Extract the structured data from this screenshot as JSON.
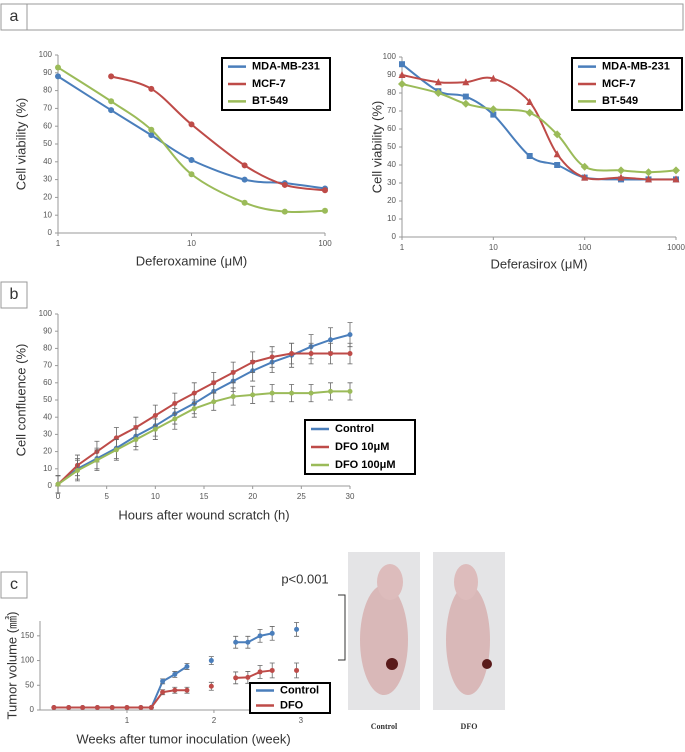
{
  "panel_labels": [
    "a",
    "b",
    "c"
  ],
  "photos": [
    {
      "caption": "Control"
    },
    {
      "caption": "DFO"
    }
  ],
  "chart_data": [
    {
      "type": "line",
      "ylabel": "Cell viability (%)",
      "xlabel": "Deferoxamine  (μM)",
      "xscale": "log",
      "xlim": [
        1,
        100
      ],
      "xticks": [
        1,
        10,
        100
      ],
      "ylim": [
        0,
        100
      ],
      "yticks": [
        0,
        10,
        20,
        30,
        40,
        50,
        60,
        70,
        80,
        90,
        100
      ],
      "legend": "upper right",
      "smooth": true,
      "x": [
        1,
        2.5,
        5,
        10,
        25,
        50,
        100
      ],
      "series": [
        {
          "name": "MDA-MB-231",
          "color": "#4a7ebb",
          "marker": "circle",
          "values": [
            88,
            69,
            55,
            41,
            30,
            28,
            25
          ]
        },
        {
          "name": "MCF-7",
          "color": "#be4b48",
          "marker": "circle",
          "values": [
            null,
            88,
            81,
            61,
            38,
            27,
            24
          ]
        },
        {
          "name": "BT-549",
          "color": "#9bbb59",
          "marker": "circle",
          "values": [
            93,
            74,
            58,
            33,
            17,
            12,
            12.5
          ]
        }
      ]
    },
    {
      "type": "line",
      "ylabel": "Cell viability (%)",
      "xlabel": "Deferasirox (μM)",
      "xscale": "log",
      "xlim": [
        1,
        1000
      ],
      "xticks": [
        1,
        10,
        100,
        1000
      ],
      "ylim": [
        0,
        100
      ],
      "yticks": [
        0,
        10,
        20,
        30,
        40,
        50,
        60,
        70,
        80,
        90,
        100
      ],
      "legend": "upper right",
      "smooth": true,
      "x": [
        1,
        2.5,
        5,
        10,
        25,
        50,
        100,
        250,
        500,
        1000
      ],
      "series": [
        {
          "name": "MDA-MB-231",
          "color": "#4a7ebb",
          "marker": "square",
          "values": [
            96,
            81,
            78,
            68,
            45,
            40,
            33,
            32,
            32,
            32
          ]
        },
        {
          "name": "MCF-7",
          "color": "#be4b48",
          "marker": "triangle",
          "values": [
            90,
            86,
            86,
            88,
            75,
            46,
            33,
            33,
            32,
            32
          ]
        },
        {
          "name": "BT-549",
          "color": "#9bbb59",
          "marker": "diamond",
          "values": [
            85,
            80,
            74,
            71,
            69,
            57,
            39,
            37,
            36,
            37
          ]
        }
      ]
    },
    {
      "type": "errorbar",
      "ylabel": "Cell confluence (%)",
      "xlabel": "Hours after wound scratch (h)",
      "xlim": [
        0,
        30
      ],
      "xticks": [
        0,
        5,
        10,
        15,
        20,
        25,
        30
      ],
      "ylim": [
        0,
        100
      ],
      "yticks": [
        0,
        10,
        20,
        30,
        40,
        50,
        60,
        70,
        80,
        90,
        100
      ],
      "legend": "right",
      "x": [
        0,
        2,
        4,
        6,
        8,
        10,
        12,
        14,
        16,
        18,
        20,
        22,
        24,
        26,
        28,
        30
      ],
      "series": [
        {
          "name": "Control",
          "color": "#4a7ebb",
          "values": [
            1,
            10,
            16,
            22,
            29,
            35,
            42,
            48,
            55,
            61,
            67,
            72,
            76,
            81,
            85,
            88
          ],
          "errors": [
            5,
            6,
            6,
            6,
            6,
            6,
            6,
            6,
            6,
            6,
            6,
            6,
            7,
            7,
            7,
            7
          ]
        },
        {
          "name": "DFO 10μM",
          "color": "#be4b48",
          "values": [
            1,
            12,
            20,
            28,
            34,
            41,
            48,
            54,
            60,
            66,
            72,
            75,
            77,
            77,
            77,
            77
          ],
          "errors": [
            5,
            6,
            6,
            6,
            6,
            6,
            6,
            6,
            6,
            6,
            6,
            6,
            6,
            6,
            6,
            6
          ]
        },
        {
          "name": "DFO 100μM",
          "color": "#9bbb59",
          "values": [
            1,
            9,
            15,
            21,
            27,
            33,
            39,
            45,
            49,
            52,
            53,
            54,
            54,
            54,
            55,
            55
          ],
          "errors": [
            5,
            6,
            6,
            6,
            6,
            6,
            6,
            5,
            5,
            5,
            5,
            5,
            5,
            5,
            5,
            5
          ]
        }
      ]
    },
    {
      "type": "errorbar",
      "ylabel": "Tumor volume (㎣)",
      "xlabel": "Weeks after tumor inoculation (week)",
      "xlim": [
        0,
        3.3
      ],
      "xticks": [
        1,
        2,
        3
      ],
      "ylim": [
        0,
        180
      ],
      "yticks": [
        0,
        50,
        100,
        150
      ],
      "legend": "lower right",
      "annotation": "p<0.001",
      "x": [
        0.16,
        0.33,
        0.49,
        0.66,
        0.83,
        1.0,
        1.16,
        1.28,
        1.41,
        1.55,
        1.69,
        1.97,
        2.25,
        2.39,
        2.53,
        2.67,
        2.95
      ],
      "series": [
        {
          "name": "Control",
          "color": "#4a7ebb",
          "values": [
            5,
            5,
            5,
            5,
            5,
            5,
            5,
            5,
            58,
            72,
            88,
            100,
            137,
            137,
            150,
            155,
            163
          ],
          "errors": [
            0,
            0,
            0,
            0,
            0,
            0,
            0,
            0,
            5,
            6,
            6,
            8,
            12,
            12,
            13,
            14,
            14
          ]
        },
        {
          "name": "DFO",
          "color": "#be4b48",
          "values": [
            5,
            5,
            5,
            5,
            5,
            5,
            5,
            5,
            36,
            40,
            40,
            48,
            65,
            66,
            77,
            80,
            80
          ],
          "errors": [
            0,
            0,
            0,
            0,
            0,
            0,
            0,
            0,
            5,
            6,
            6,
            8,
            12,
            12,
            13,
            15,
            15
          ]
        }
      ]
    }
  ]
}
